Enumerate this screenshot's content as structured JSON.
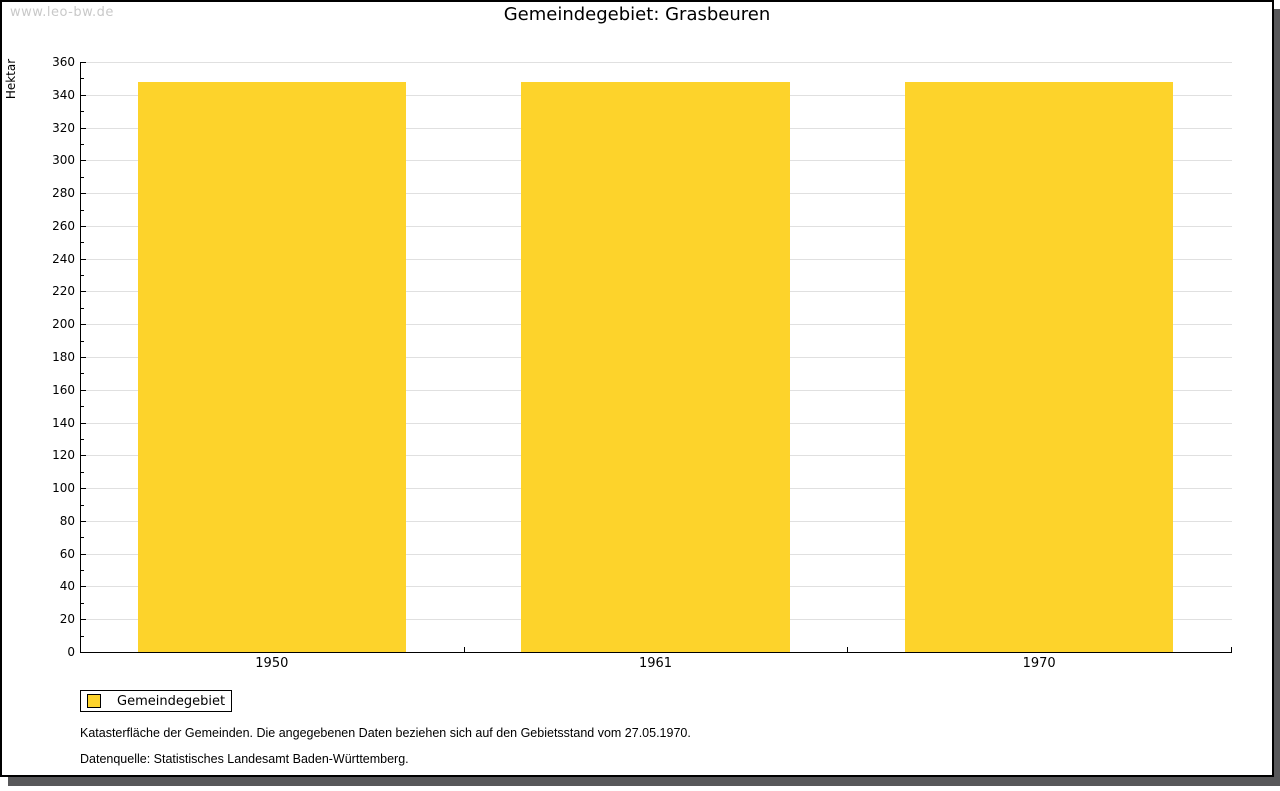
{
  "watermark": "www.leo-bw.de",
  "title": "Gemeindegebiet: Grasbeuren",
  "chart_data": {
    "type": "bar",
    "title": "Gemeindegebiet: Grasbeuren",
    "categories": [
      "1950",
      "1961",
      "1970"
    ],
    "series": [
      {
        "name": "Gemeindegebiet",
        "values": [
          348,
          348,
          348
        ]
      }
    ],
    "xlabel": "",
    "ylabel": "Hektar",
    "ylim": [
      0,
      360
    ],
    "ytick_major": 20,
    "ytick_minor": 10,
    "grid": true,
    "bar_color": "#fdd32b",
    "bar_width_fraction": 0.7,
    "legend_position": "bottom-left"
  },
  "legend": {
    "label": "Gemeindegebiet",
    "swatch_color": "#fdd32b"
  },
  "footer": {
    "line1": "Katasterfläche der Gemeinden. Die angegebenen Daten beziehen sich auf den Gebietsstand vom 27.05.1970.",
    "line2": "Datenquelle: Statistisches Landesamt Baden-Württemberg."
  },
  "colors": {
    "bar": "#fdd32b",
    "gridline": "#e0e0e0",
    "axis": "#000000",
    "watermark": "#c9c9c9",
    "frame_shadow": "#58585a"
  }
}
